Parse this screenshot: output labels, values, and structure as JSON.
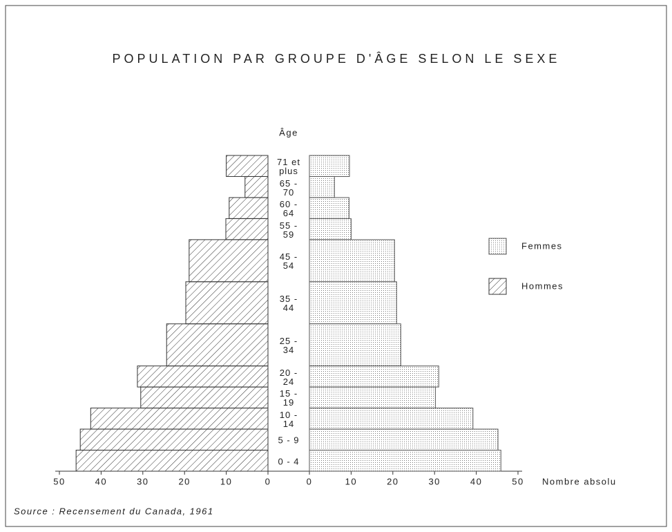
{
  "chart_data": {
    "type": "pyramid",
    "title": "POPULATION PAR GROUPE D'ÂGE SELON LE SEXE",
    "y_label": "Âge",
    "x_label": "Nombre absolu",
    "source": "Source : Recensement du Canada, 1961",
    "categories": [
      "71 et plus",
      "65 - 70",
      "60 - 64",
      "55 - 59",
      "45 - 54",
      "35 - 44",
      "25 - 34",
      "20 - 24",
      "15 - 19",
      "10 - 14",
      "5 - 9",
      "0 - 4"
    ],
    "series": [
      {
        "name": "Femmes",
        "side": "right",
        "pattern": "dots",
        "color": "#555",
        "values": [
          9.6,
          6,
          9.5,
          10,
          20.4,
          20.9,
          21.9,
          31,
          30.2,
          39.2,
          45.2,
          45.9
        ]
      },
      {
        "name": "Hommes",
        "side": "left",
        "pattern": "hatch",
        "color": "#333",
        "values": [
          10,
          5.5,
          9.3,
          10.1,
          18.9,
          19.7,
          24.3,
          31.3,
          30.5,
          42.5,
          45,
          46
        ]
      }
    ],
    "xlim": [
      0,
      50
    ],
    "xticks": [
      0,
      10,
      20,
      30,
      40,
      50
    ]
  }
}
